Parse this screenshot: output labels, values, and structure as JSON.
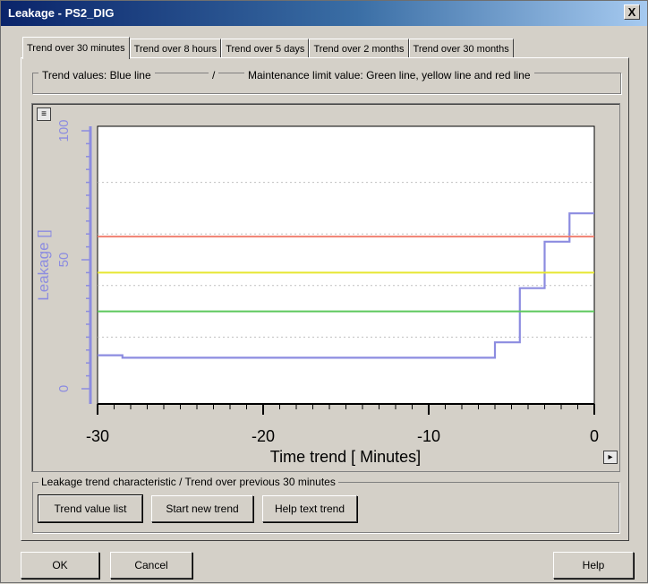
{
  "window": {
    "title": "Leakage - PS2_DIG",
    "close_label": "X"
  },
  "tabs": [
    {
      "label": "Trend over 30 minutes",
      "active": true
    },
    {
      "label": "Trend over 8 hours",
      "active": false
    },
    {
      "label": "Trend over 5 days",
      "active": false
    },
    {
      "label": "Trend over 2 months",
      "active": false
    },
    {
      "label": "Trend over 30 months",
      "active": false
    }
  ],
  "legend": {
    "trend_values": "Trend values:  Blue line",
    "separator": "/",
    "limits": "Maintenance limit value: Green line, yellow line and red line"
  },
  "chart_data": {
    "type": "line",
    "xlabel": "Time trend [ Minutes]",
    "ylabel": "Leakage []",
    "xlim": [
      -30,
      0
    ],
    "ylim": [
      0,
      100
    ],
    "x_ticks": [
      "-30",
      "-20",
      "-10",
      "0"
    ],
    "y_ticks": [
      "0",
      "50",
      "100"
    ],
    "grid": "horizontal dotted",
    "series": [
      {
        "name": "Trend values",
        "color": "#8c8ce0",
        "style": "step",
        "points": [
          [
            -30,
            13
          ],
          [
            -28.5,
            13
          ],
          [
            -28.5,
            12
          ],
          [
            -7.5,
            12
          ],
          [
            -7.5,
            12
          ],
          [
            -6,
            12
          ],
          [
            -6,
            18
          ],
          [
            -4.5,
            18
          ],
          [
            -4.5,
            39
          ],
          [
            -3,
            39
          ],
          [
            -3,
            57
          ],
          [
            -1.5,
            57
          ],
          [
            -1.5,
            68
          ],
          [
            0,
            68
          ]
        ]
      },
      {
        "name": "Red limit",
        "color": "#f08070",
        "constant": 59
      },
      {
        "name": "Yellow limit",
        "color": "#e6e632",
        "constant": 45
      },
      {
        "name": "Green limit",
        "color": "#5cc85c",
        "constant": 30
      }
    ]
  },
  "bottom_group": {
    "label": "Leakage trend characteristic  /  Trend over previous 30 minutes",
    "buttons": [
      "Trend value list",
      "Start new trend",
      "Help text trend"
    ]
  },
  "footer": {
    "ok": "OK",
    "cancel": "Cancel",
    "help": "Help"
  },
  "chart_controls": {
    "top_left": "≡",
    "bottom_right": "▸"
  }
}
